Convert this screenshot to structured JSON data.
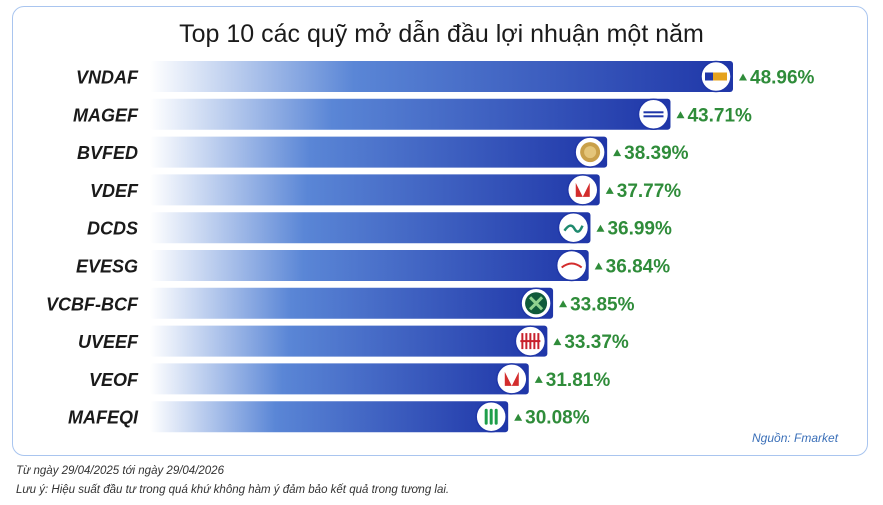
{
  "chart_data": {
    "type": "bar",
    "orientation": "horizontal",
    "title": "Top 10 các quỹ mở dẫn đầu lợi nhuận một năm",
    "categories": [
      "VNDAF",
      "MAGEF",
      "BVFED",
      "VDEF",
      "DCDS",
      "EVESG",
      "VCBF-BCF",
      "UVEEF",
      "VEOF",
      "MAFEQI"
    ],
    "values": [
      48.96,
      43.71,
      38.39,
      37.77,
      36.99,
      36.84,
      33.85,
      33.37,
      31.81,
      30.08
    ],
    "value_labels": [
      "48.96%",
      "43.71%",
      "38.39%",
      "37.77%",
      "36.99%",
      "36.84%",
      "33.85%",
      "33.37%",
      "31.81%",
      "30.08%"
    ],
    "logos": [
      "vndirect-logo",
      "mirae-asset-logo",
      "baoviet-logo",
      "vcbf-red-logo",
      "dragon-capital-logo",
      "eastspring-logo",
      "vietcombank-logo",
      "uob-logo",
      "vcbf-red-logo",
      "manulife-logo"
    ],
    "bar_color_start": "#ffffff",
    "bar_color_end": "#1f36a8",
    "label_color": "#2f8c3a",
    "up_arrow_color": "#2f8c3a",
    "grid": false,
    "legend": "none"
  },
  "source": "Nguồn: Fmarket",
  "footnote_period": "Từ ngày 29/04/2025 tới ngày 29/04/2026",
  "footnote_disclaimer": "Lưu ý: Hiệu suất đầu tư trong quá khứ không hàm ý đảm bảo kết quả trong tương lai."
}
